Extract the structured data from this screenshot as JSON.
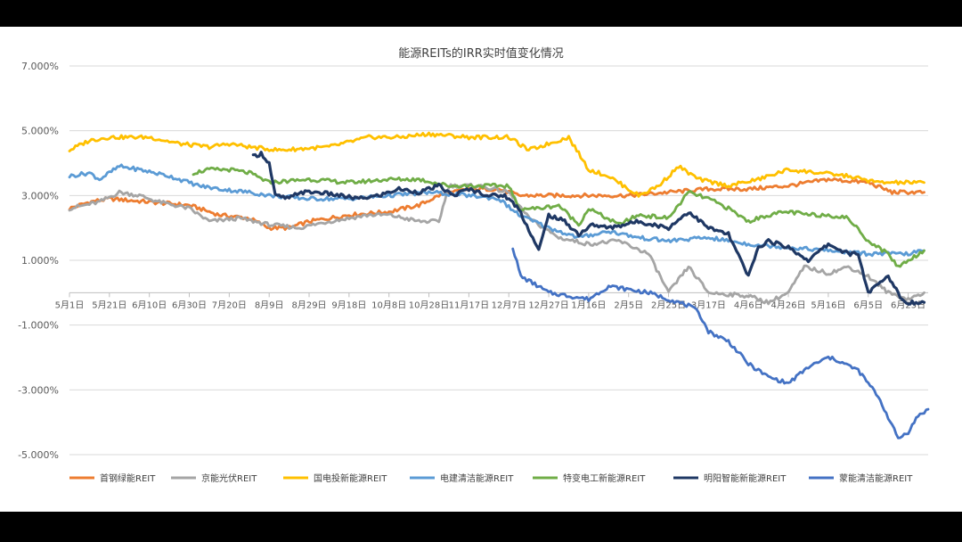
{
  "chart_data": {
    "type": "line",
    "title": "能源REITs的IRR实时值变化情况",
    "xlabel": "",
    "ylabel": "",
    "ylim": [
      -5,
      7
    ],
    "y_ticks": [
      "7.000%",
      "5.000%",
      "3.000%",
      "1.000%",
      "-1.000%",
      "-3.000%",
      "-5.000%"
    ],
    "y_tick_values": [
      7,
      5,
      3,
      1,
      -1,
      -3,
      -5
    ],
    "x_axis_crosses_at": 0,
    "x_ticks": [
      "5月1日",
      "5月21日",
      "6月10日",
      "6月30日",
      "7月20日",
      "8月9日",
      "8月29日",
      "9月18日",
      "10月8日",
      "10月28日",
      "11月17日",
      "12月7日",
      "12月27日",
      "1月16日",
      "2月5日",
      "2月25日",
      "3月17日",
      "4月6日",
      "4月26日",
      "5月16日",
      "6月5日",
      "6月25日"
    ],
    "x_tick_index": [
      0,
      20,
      40,
      60,
      80,
      100,
      120,
      140,
      160,
      180,
      200,
      220,
      240,
      260,
      280,
      300,
      320,
      340,
      360,
      380,
      400,
      420
    ],
    "x_range": [
      0,
      430
    ],
    "grid": "horizontal",
    "legend_position": "bottom",
    "series": [
      {
        "name": "首钢绿能REIT",
        "color": "#ED7D31",
        "points": [
          [
            0,
            2.6
          ],
          [
            10,
            2.8
          ],
          [
            20,
            2.9
          ],
          [
            40,
            2.8
          ],
          [
            60,
            2.7
          ],
          [
            75,
            2.4
          ],
          [
            90,
            2.3
          ],
          [
            100,
            2.0
          ],
          [
            110,
            2.0
          ],
          [
            120,
            2.2
          ],
          [
            140,
            2.4
          ],
          [
            160,
            2.5
          ],
          [
            175,
            2.7
          ],
          [
            185,
            3.0
          ],
          [
            200,
            3.2
          ],
          [
            215,
            3.2
          ],
          [
            225,
            3.0
          ],
          [
            240,
            3.0
          ],
          [
            260,
            3.0
          ],
          [
            280,
            3.0
          ],
          [
            300,
            3.1
          ],
          [
            320,
            3.2
          ],
          [
            340,
            3.2
          ],
          [
            360,
            3.3
          ],
          [
            380,
            3.5
          ],
          [
            400,
            3.4
          ],
          [
            412,
            3.1
          ],
          [
            420,
            3.1
          ],
          [
            428,
            3.1
          ]
        ]
      },
      {
        "name": "京能光伏REIT",
        "color": "#A5A5A5",
        "points": [
          [
            0,
            2.6
          ],
          [
            15,
            2.8
          ],
          [
            25,
            3.1
          ],
          [
            35,
            3.0
          ],
          [
            45,
            2.8
          ],
          [
            60,
            2.6
          ],
          [
            70,
            2.2
          ],
          [
            85,
            2.3
          ],
          [
            100,
            2.1
          ],
          [
            115,
            2.0
          ],
          [
            130,
            2.2
          ],
          [
            150,
            2.4
          ],
          [
            160,
            2.4
          ],
          [
            175,
            2.2
          ],
          [
            185,
            2.2
          ],
          [
            190,
            3.3
          ],
          [
            205,
            3.3
          ],
          [
            220,
            3.1
          ],
          [
            230,
            2.3
          ],
          [
            245,
            1.7
          ],
          [
            260,
            1.5
          ],
          [
            275,
            1.6
          ],
          [
            290,
            1.2
          ],
          [
            300,
            0.0
          ],
          [
            310,
            0.8
          ],
          [
            320,
            0.0
          ],
          [
            340,
            -0.1
          ],
          [
            350,
            -0.3
          ],
          [
            360,
            0.0
          ],
          [
            368,
            0.8
          ],
          [
            380,
            0.6
          ],
          [
            390,
            0.8
          ],
          [
            400,
            0.5
          ],
          [
            410,
            0.0
          ],
          [
            420,
            -0.2
          ],
          [
            428,
            0.0
          ]
        ]
      },
      {
        "name": "国电投新能源REIT",
        "color": "#FFC000",
        "points": [
          [
            0,
            4.4
          ],
          [
            10,
            4.7
          ],
          [
            20,
            4.8
          ],
          [
            40,
            4.8
          ],
          [
            55,
            4.6
          ],
          [
            70,
            4.5
          ],
          [
            80,
            4.6
          ],
          [
            90,
            4.5
          ],
          [
            105,
            4.4
          ],
          [
            130,
            4.5
          ],
          [
            150,
            4.8
          ],
          [
            165,
            4.8
          ],
          [
            180,
            4.9
          ],
          [
            200,
            4.8
          ],
          [
            220,
            4.8
          ],
          [
            230,
            4.4
          ],
          [
            240,
            4.6
          ],
          [
            250,
            4.8
          ],
          [
            260,
            3.8
          ],
          [
            270,
            3.6
          ],
          [
            285,
            3.0
          ],
          [
            295,
            3.3
          ],
          [
            305,
            3.9
          ],
          [
            315,
            3.5
          ],
          [
            330,
            3.3
          ],
          [
            345,
            3.5
          ],
          [
            360,
            3.8
          ],
          [
            375,
            3.7
          ],
          [
            390,
            3.6
          ],
          [
            405,
            3.4
          ],
          [
            428,
            3.4
          ]
        ]
      },
      {
        "name": "电建清洁能源REIT",
        "color": "#5B9BD5",
        "points": [
          [
            0,
            3.6
          ],
          [
            10,
            3.7
          ],
          [
            15,
            3.5
          ],
          [
            25,
            3.9
          ],
          [
            35,
            3.8
          ],
          [
            50,
            3.6
          ],
          [
            65,
            3.3
          ],
          [
            75,
            3.2
          ],
          [
            90,
            3.1
          ],
          [
            100,
            3.0
          ],
          [
            120,
            2.9
          ],
          [
            140,
            2.9
          ],
          [
            160,
            3.0
          ],
          [
            180,
            3.1
          ],
          [
            200,
            3.0
          ],
          [
            215,
            2.9
          ],
          [
            225,
            2.4
          ],
          [
            240,
            2.0
          ],
          [
            255,
            1.7
          ],
          [
            270,
            1.9
          ],
          [
            285,
            1.7
          ],
          [
            300,
            1.6
          ],
          [
            320,
            1.7
          ],
          [
            340,
            1.5
          ],
          [
            360,
            1.4
          ],
          [
            380,
            1.3
          ],
          [
            400,
            1.2
          ],
          [
            420,
            1.2
          ],
          [
            428,
            1.3
          ]
        ]
      },
      {
        "name": "特变电工新能源REIT",
        "color": "#70AD47",
        "points": [
          [
            62,
            3.7
          ],
          [
            70,
            3.8
          ],
          [
            80,
            3.8
          ],
          [
            90,
            3.7
          ],
          [
            100,
            3.4
          ],
          [
            120,
            3.5
          ],
          [
            140,
            3.4
          ],
          [
            160,
            3.5
          ],
          [
            175,
            3.5
          ],
          [
            190,
            3.3
          ],
          [
            205,
            3.3
          ],
          [
            220,
            3.3
          ],
          [
            225,
            2.6
          ],
          [
            235,
            2.6
          ],
          [
            245,
            2.7
          ],
          [
            255,
            2.1
          ],
          [
            260,
            2.6
          ],
          [
            275,
            2.1
          ],
          [
            285,
            2.4
          ],
          [
            300,
            2.3
          ],
          [
            310,
            3.1
          ],
          [
            320,
            2.9
          ],
          [
            330,
            2.6
          ],
          [
            340,
            2.2
          ],
          [
            350,
            2.4
          ],
          [
            360,
            2.5
          ],
          [
            370,
            2.4
          ],
          [
            380,
            2.4
          ],
          [
            390,
            2.3
          ],
          [
            400,
            1.6
          ],
          [
            410,
            1.2
          ],
          [
            415,
            0.8
          ],
          [
            420,
            1.0
          ],
          [
            428,
            1.3
          ]
        ]
      },
      {
        "name": "明阳智能新能源REIT",
        "color": "#1F3864",
        "points": [
          [
            92,
            4.2
          ],
          [
            96,
            4.3
          ],
          [
            100,
            4.0
          ],
          [
            103,
            3.0
          ],
          [
            110,
            2.9
          ],
          [
            115,
            3.1
          ],
          [
            125,
            3.1
          ],
          [
            135,
            3.0
          ],
          [
            145,
            2.9
          ],
          [
            155,
            3.0
          ],
          [
            165,
            3.2
          ],
          [
            175,
            3.1
          ],
          [
            185,
            3.3
          ],
          [
            192,
            3.0
          ],
          [
            200,
            3.2
          ],
          [
            210,
            3.0
          ],
          [
            218,
            3.0
          ],
          [
            225,
            2.6
          ],
          [
            235,
            1.3
          ],
          [
            240,
            2.4
          ],
          [
            248,
            2.2
          ],
          [
            255,
            1.8
          ],
          [
            262,
            2.1
          ],
          [
            270,
            2.0
          ],
          [
            285,
            2.2
          ],
          [
            300,
            2.0
          ],
          [
            310,
            2.5
          ],
          [
            320,
            2.0
          ],
          [
            330,
            1.8
          ],
          [
            340,
            0.5
          ],
          [
            345,
            1.4
          ],
          [
            350,
            1.6
          ],
          [
            360,
            1.4
          ],
          [
            370,
            1.0
          ],
          [
            380,
            1.5
          ],
          [
            390,
            1.2
          ],
          [
            395,
            1.2
          ],
          [
            400,
            0.0
          ],
          [
            410,
            0.5
          ],
          [
            418,
            -0.3
          ],
          [
            428,
            -0.3
          ]
        ]
      },
      {
        "name": "蒙能清洁能源REIT",
        "color": "#4472C4",
        "points": [
          [
            222,
            1.4
          ],
          [
            226,
            0.5
          ],
          [
            232,
            0.3
          ],
          [
            240,
            0.0
          ],
          [
            250,
            -0.1
          ],
          [
            260,
            -0.2
          ],
          [
            270,
            0.2
          ],
          [
            280,
            0.1
          ],
          [
            290,
            0.0
          ],
          [
            300,
            -0.2
          ],
          [
            310,
            -0.4
          ],
          [
            315,
            -0.6
          ],
          [
            320,
            -1.2
          ],
          [
            330,
            -1.5
          ],
          [
            340,
            -2.2
          ],
          [
            350,
            -2.6
          ],
          [
            360,
            -2.8
          ],
          [
            370,
            -2.3
          ],
          [
            380,
            -2.0
          ],
          [
            385,
            -2.1
          ],
          [
            395,
            -2.4
          ],
          [
            405,
            -3.2
          ],
          [
            415,
            -4.5
          ],
          [
            420,
            -4.3
          ],
          [
            425,
            -3.8
          ],
          [
            430,
            -3.6
          ]
        ]
      }
    ]
  }
}
